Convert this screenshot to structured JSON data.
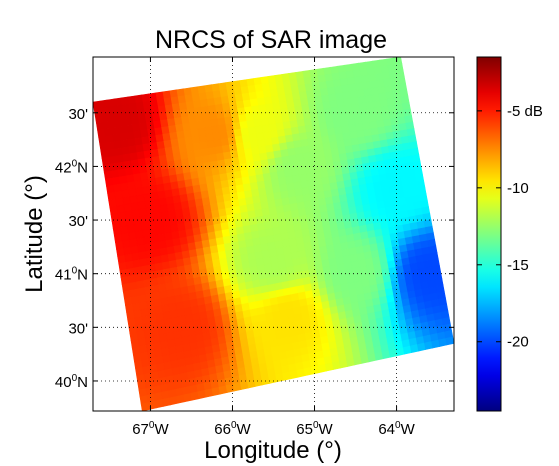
{
  "chart_data": {
    "type": "heatmap",
    "title": "NRCS of SAR image",
    "xlabel": "Longitude (°)",
    "ylabel": "Latitude (°)",
    "xlim": [
      -67.7,
      -63.3
    ],
    "ylim": [
      39.72,
      43.02
    ],
    "x_ticks": [
      {
        "value": -67,
        "deg": "67",
        "sup": "0",
        "hem": "W"
      },
      {
        "value": -66,
        "deg": "66",
        "sup": "0",
        "hem": "W"
      },
      {
        "value": -65,
        "deg": "65",
        "sup": "0",
        "hem": "W"
      },
      {
        "value": -64,
        "deg": "64",
        "sup": "0",
        "hem": "W"
      }
    ],
    "y_ticks": [
      {
        "value": 40.0,
        "main": "40",
        "sup": "0",
        "hem": "N"
      },
      {
        "value": 40.5,
        "main": "30'",
        "sup": "",
        "hem": ""
      },
      {
        "value": 41.0,
        "main": "41",
        "sup": "0",
        "hem": "N"
      },
      {
        "value": 41.5,
        "main": "30'",
        "sup": "",
        "hem": ""
      },
      {
        "value": 42.0,
        "main": "42",
        "sup": "0",
        "hem": "N"
      },
      {
        "value": 42.5,
        "main": "30'",
        "sup": "",
        "hem": ""
      }
    ],
    "grid": true,
    "image_corners_lonlat": [
      [
        -67.7,
        42.6
      ],
      [
        -63.95,
        43.02
      ],
      [
        -63.3,
        40.35
      ],
      [
        -67.1,
        39.72
      ]
    ],
    "colorbar": {
      "colormap": "jet",
      "range": [
        -24.5,
        -1.5
      ],
      "ticks": [
        {
          "value": -5,
          "label": "-5 dB"
        },
        {
          "value": -10,
          "label": "-10"
        },
        {
          "value": -15,
          "label": "-15"
        },
        {
          "value": -20,
          "label": "-20"
        }
      ]
    },
    "field_samples_db": [
      {
        "lon": -67.4,
        "lat": 42.4,
        "db": -3.5
      },
      {
        "lon": -67.0,
        "lat": 41.5,
        "db": -4.5
      },
      {
        "lon": -66.6,
        "lat": 40.5,
        "db": -5.5
      },
      {
        "lon": -66.2,
        "lat": 42.3,
        "db": -7.5
      },
      {
        "lon": -65.7,
        "lat": 42.3,
        "db": -10.5
      },
      {
        "lon": -65.2,
        "lat": 42.0,
        "db": -12.5
      },
      {
        "lon": -64.5,
        "lat": 42.5,
        "db": -13.0
      },
      {
        "lon": -64.0,
        "lat": 41.8,
        "db": -16.0
      },
      {
        "lon": -63.6,
        "lat": 41.0,
        "db": -20.0
      },
      {
        "lon": -64.5,
        "lat": 41.0,
        "db": -13.0
      },
      {
        "lon": -65.3,
        "lat": 40.6,
        "db": -9.5
      },
      {
        "lon": -65.5,
        "lat": 41.1,
        "db": -12.0
      }
    ]
  }
}
